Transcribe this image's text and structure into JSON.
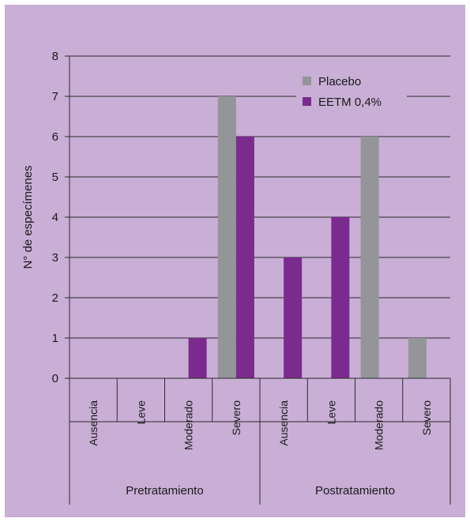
{
  "chart_data": {
    "type": "bar",
    "title": "",
    "xlabel": "",
    "ylabel": "N° de especímenes",
    "ylim": [
      0,
      8
    ],
    "yticks": [
      0,
      1,
      2,
      3,
      4,
      5,
      6,
      7,
      8
    ],
    "grid": true,
    "legend": "top-right",
    "categories": [
      "Ausencia",
      "Leve",
      "Moderado",
      "Severo",
      "Ausencia",
      "Leve",
      "Moderado",
      "Severo"
    ],
    "groups": [
      {
        "label": "Pretratamiento",
        "span": [
          0,
          3
        ]
      },
      {
        "label": "Postratamiento",
        "span": [
          4,
          7
        ]
      }
    ],
    "series": [
      {
        "name": "Placebo",
        "color": "#939598",
        "values": [
          0,
          0,
          0,
          7,
          0,
          0,
          6,
          1
        ]
      },
      {
        "name": "EETM 0,4%",
        "color": "#7b2a8e",
        "values": [
          0,
          0,
          1,
          6,
          3,
          4,
          0,
          0
        ]
      }
    ]
  },
  "colors": {
    "background": "#c9aed6",
    "grid": "#2b2b2b"
  }
}
